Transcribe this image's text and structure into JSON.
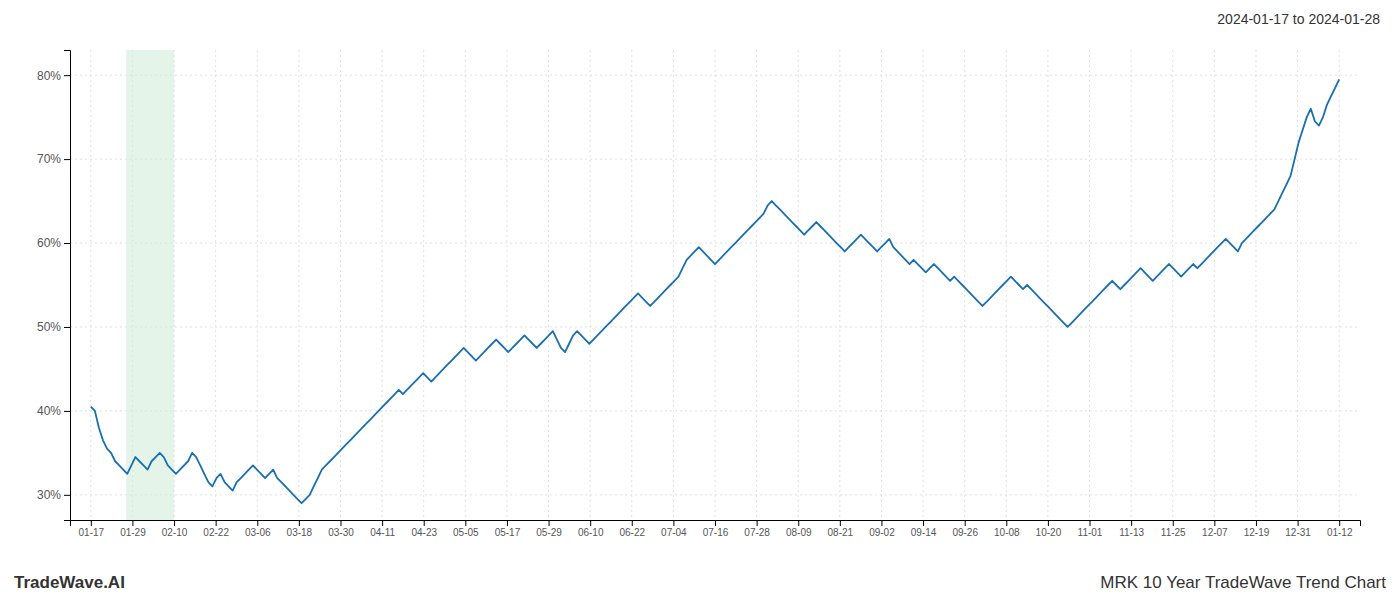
{
  "chart_data": {
    "type": "line",
    "title": "MRK 10 Year TradeWave Trend Chart",
    "subtitle": "2024-01-17 to 2024-01-28",
    "annotations": [
      "TradeWave.AI"
    ],
    "color": "#1a6faf",
    "span": {
      "x": [
        0.85,
        2.0
      ],
      "color": "#d4edda"
    },
    "grid": true,
    "xlim": [
      -0.5,
      30.5
    ],
    "xticks": [
      {
        "value": 0,
        "label": "01-17"
      },
      {
        "value": 1,
        "label": "01-29"
      },
      {
        "value": 2,
        "label": "02-10"
      },
      {
        "value": 3,
        "label": "02-22"
      },
      {
        "value": 4,
        "label": "03-06"
      },
      {
        "value": 5,
        "label": "03-18"
      },
      {
        "value": 6,
        "label": "03-30"
      },
      {
        "value": 7,
        "label": "04-11"
      },
      {
        "value": 8,
        "label": "04-23"
      },
      {
        "value": 9,
        "label": "05-05"
      },
      {
        "value": 10,
        "label": "05-17"
      },
      {
        "value": 11,
        "label": "05-29"
      },
      {
        "value": 12,
        "label": "06-10"
      },
      {
        "value": 13,
        "label": "06-22"
      },
      {
        "value": 14,
        "label": "07-04"
      },
      {
        "value": 15,
        "label": "07-16"
      },
      {
        "value": 16,
        "label": "07-28"
      },
      {
        "value": 17,
        "label": "08-09"
      },
      {
        "value": 18,
        "label": "08-21"
      },
      {
        "value": 19,
        "label": "09-02"
      },
      {
        "value": 20,
        "label": "09-14"
      },
      {
        "value": 21,
        "label": "09-26"
      },
      {
        "value": 22,
        "label": "10-08"
      },
      {
        "value": 23,
        "label": "10-20"
      },
      {
        "value": 24,
        "label": "11-01"
      },
      {
        "value": 25,
        "label": "11-13"
      },
      {
        "value": 26,
        "label": "11-25"
      },
      {
        "value": 27,
        "label": "12-07"
      },
      {
        "value": 28,
        "label": "12-19"
      },
      {
        "value": 29,
        "label": "12-31"
      },
      {
        "value": 30,
        "label": "01-12"
      }
    ],
    "ylim": [
      27,
      83
    ],
    "yticks": [
      {
        "value": 30,
        "label": "30%"
      },
      {
        "value": 40,
        "label": "40%"
      },
      {
        "value": 50,
        "label": "50%"
      },
      {
        "value": 60,
        "label": "60%"
      },
      {
        "value": 70,
        "label": "70%"
      },
      {
        "value": 80,
        "label": "80%"
      }
    ],
    "values": [
      40.5,
      40.0,
      38.0,
      36.5,
      35.5,
      35.0,
      34.0,
      33.5,
      33.0,
      32.5,
      33.5,
      34.5,
      34.0,
      33.5,
      33.0,
      34.0,
      34.5,
      35.0,
      34.5,
      33.5,
      33.0,
      32.5,
      33.0,
      33.5,
      34.0,
      35.0,
      34.5,
      33.5,
      32.5,
      31.5,
      31.0,
      32.0,
      32.5,
      31.5,
      31.0,
      30.5,
      31.5,
      32.0,
      32.5,
      33.0,
      33.5,
      33.0,
      32.5,
      32.0,
      32.5,
      33.0,
      32.0,
      31.5,
      31.0,
      30.5,
      30.0,
      29.5,
      29.0,
      29.5,
      30.0,
      31.0,
      32.0,
      33.0,
      33.5,
      34.0,
      34.5,
      35.0,
      35.5,
      36.0,
      36.5,
      37.0,
      37.5,
      38.0,
      38.5,
      39.0,
      39.5,
      40.0,
      40.5,
      41.0,
      41.5,
      42.0,
      42.5,
      42.0,
      42.5,
      43.0,
      43.5,
      44.0,
      44.5,
      44.0,
      43.5,
      44.0,
      44.5,
      45.0,
      45.5,
      46.0,
      46.5,
      47.0,
      47.5,
      47.0,
      46.5,
      46.0,
      46.5,
      47.0,
      47.5,
      48.0,
      48.5,
      48.0,
      47.5,
      47.0,
      47.5,
      48.0,
      48.5,
      49.0,
      48.5,
      48.0,
      47.5,
      48.0,
      48.5,
      49.0,
      49.5,
      48.5,
      47.5,
      47.0,
      48.0,
      49.0,
      49.5,
      49.0,
      48.5,
      48.0,
      48.5,
      49.0,
      49.5,
      50.0,
      50.5,
      51.0,
      51.5,
      52.0,
      52.5,
      53.0,
      53.5,
      54.0,
      53.5,
      53.0,
      52.5,
      53.0,
      53.5,
      54.0,
      54.5,
      55.0,
      55.5,
      56.0,
      57.0,
      58.0,
      58.5,
      59.0,
      59.5,
      59.0,
      58.5,
      58.0,
      57.5,
      58.0,
      58.5,
      59.0,
      59.5,
      60.0,
      60.5,
      61.0,
      61.5,
      62.0,
      62.5,
      63.0,
      63.5,
      64.5,
      65.0,
      64.5,
      64.0,
      63.5,
      63.0,
      62.5,
      62.0,
      61.5,
      61.0,
      61.5,
      62.0,
      62.5,
      62.0,
      61.5,
      61.0,
      60.5,
      60.0,
      59.5,
      59.0,
      59.5,
      60.0,
      60.5,
      61.0,
      60.5,
      60.0,
      59.5,
      59.0,
      59.5,
      60.0,
      60.5,
      59.5,
      59.0,
      58.5,
      58.0,
      57.5,
      58.0,
      57.5,
      57.0,
      56.5,
      57.0,
      57.5,
      57.0,
      56.5,
      56.0,
      55.5,
      56.0,
      55.5,
      55.0,
      54.5,
      54.0,
      53.5,
      53.0,
      52.5,
      53.0,
      53.5,
      54.0,
      54.5,
      55.0,
      55.5,
      56.0,
      55.5,
      55.0,
      54.5,
      55.0,
      54.5,
      54.0,
      53.5,
      53.0,
      52.5,
      52.0,
      51.5,
      51.0,
      50.5,
      50.0,
      50.5,
      51.0,
      51.5,
      52.0,
      52.5,
      53.0,
      53.5,
      54.0,
      54.5,
      55.0,
      55.5,
      55.0,
      54.5,
      55.0,
      55.5,
      56.0,
      56.5,
      57.0,
      56.5,
      56.0,
      55.5,
      56.0,
      56.5,
      57.0,
      57.5,
      57.0,
      56.5,
      56.0,
      56.5,
      57.0,
      57.5,
      57.0,
      57.5,
      58.0,
      58.5,
      59.0,
      59.5,
      60.0,
      60.5,
      60.0,
      59.5,
      59.0,
      60.0,
      60.5,
      61.0,
      61.5,
      62.0,
      62.5,
      63.0,
      63.5,
      64.0,
      65.0,
      66.0,
      67.0,
      68.0,
      70.0,
      72.0,
      73.5,
      75.0,
      76.0,
      74.5,
      74.0,
      75.0,
      76.5,
      77.5,
      78.5,
      79.5
    ]
  }
}
